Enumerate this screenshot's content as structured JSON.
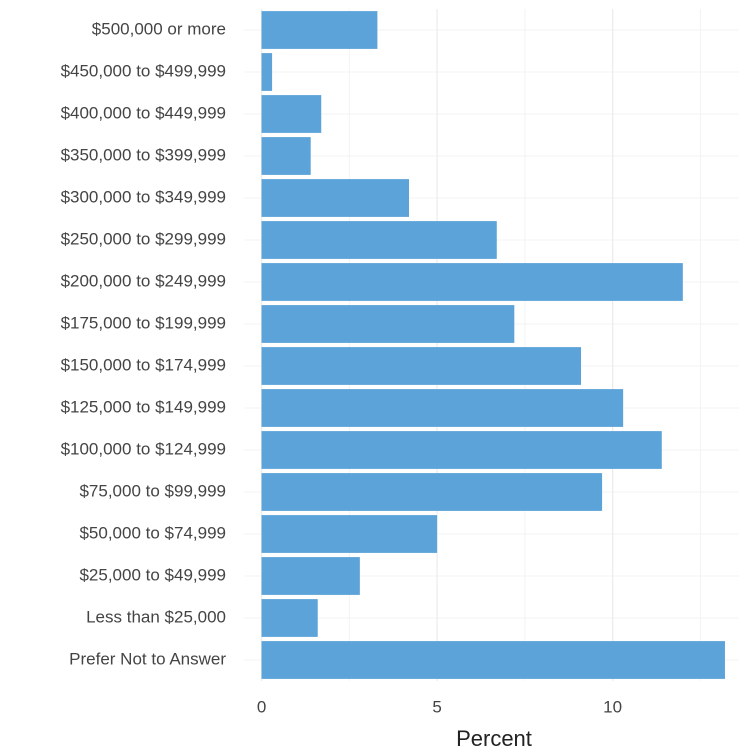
{
  "chart_data": {
    "type": "hbar",
    "xlabel": "Percent",
    "categories": [
      "$500,000 or more",
      "$450,000 to $499,999",
      "$400,000 to $449,999",
      "$350,000 to $399,999",
      "$300,000 to $349,999",
      "$250,000 to $299,999",
      "$200,000 to $249,999",
      "$175,000 to $199,999",
      "$150,000 to $174,999",
      "$125,000 to $149,999",
      "$100,000 to $124,999",
      "$75,000 to $99,999",
      "$50,000 to $74,999",
      "$25,000 to $49,999",
      "Less than $25,000",
      "Prefer Not to Answer"
    ],
    "values": [
      3.3,
      0.3,
      1.7,
      1.4,
      4.2,
      6.7,
      12.0,
      7.2,
      9.1,
      10.3,
      11.4,
      9.7,
      5.0,
      2.8,
      1.6,
      13.2
    ],
    "color": "#5ba3d9",
    "xlim": [
      -0.5,
      13.6
    ],
    "xticks": [
      0,
      5,
      10
    ],
    "xminor": [
      2.5,
      7.5,
      12.5
    ],
    "grid": true
  }
}
